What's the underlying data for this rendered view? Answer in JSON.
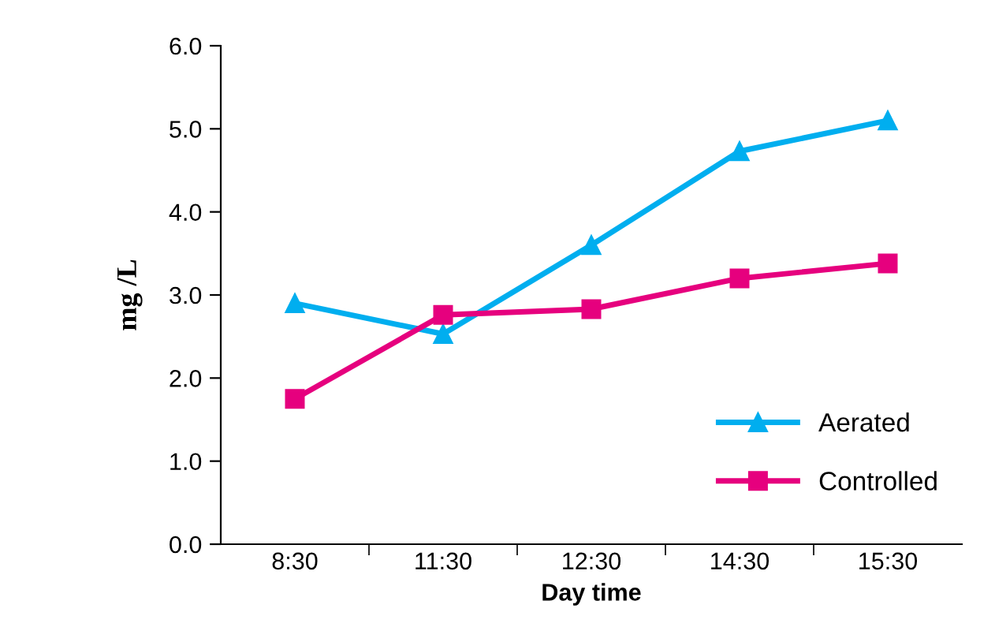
{
  "chart_data": {
    "type": "line",
    "xlabel": "Day time",
    "ylabel": "mg /L",
    "categories": [
      "8:30",
      "11:30",
      "12:30",
      "14:30",
      "15:30"
    ],
    "series": [
      {
        "name": "Aerated",
        "color": "#00aeef",
        "marker": "triangle",
        "values": [
          2.9,
          2.53,
          3.6,
          4.73,
          5.1
        ]
      },
      {
        "name": "Controlled",
        "color": "#e6007e",
        "marker": "square",
        "values": [
          1.75,
          2.76,
          2.83,
          3.2,
          3.38
        ]
      }
    ],
    "ylim": [
      0,
      6
    ],
    "yticks": [
      {
        "value": 0,
        "label": "0.0"
      },
      {
        "value": 1,
        "label": "1.0"
      },
      {
        "value": 2,
        "label": "2.0"
      },
      {
        "value": 3,
        "label": "3.0"
      },
      {
        "value": 4,
        "label": "4.0"
      },
      {
        "value": 5,
        "label": "5.0"
      },
      {
        "value": 6,
        "label": "6.0"
      }
    ],
    "grid": false,
    "legend": "bottom right",
    "line_style": "solid"
  }
}
